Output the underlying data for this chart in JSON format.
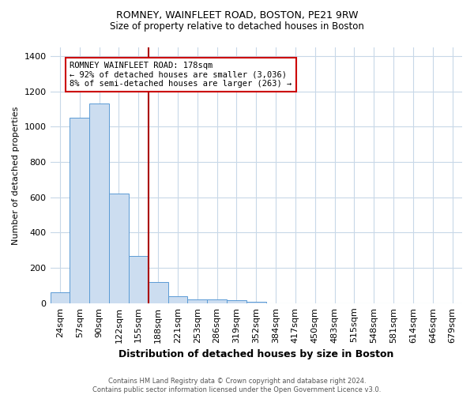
{
  "title": "ROMNEY, WAINFLEET ROAD, BOSTON, PE21 9RW",
  "subtitle": "Size of property relative to detached houses in Boston",
  "xlabel": "Distribution of detached houses by size in Boston",
  "ylabel": "Number of detached properties",
  "footnote": "Contains HM Land Registry data © Crown copyright and database right 2024.\nContains public sector information licensed under the Open Government Licence v3.0.",
  "bar_labels": [
    "24sqm",
    "57sqm",
    "90sqm",
    "122sqm",
    "155sqm",
    "188sqm",
    "221sqm",
    "253sqm",
    "286sqm",
    "319sqm",
    "352sqm",
    "384sqm",
    "417sqm",
    "450sqm",
    "483sqm",
    "515sqm",
    "548sqm",
    "581sqm",
    "614sqm",
    "646sqm",
    "679sqm"
  ],
  "bar_values": [
    60,
    1050,
    1130,
    620,
    270,
    120,
    40,
    20,
    20,
    15,
    10,
    0,
    0,
    0,
    0,
    0,
    0,
    0,
    0,
    0,
    0
  ],
  "bar_color": "#ccddf0",
  "bar_edge_color": "#5b9bd5",
  "vline_x_index": 5,
  "vline_color": "#aa0000",
  "annotation_text": "ROMNEY WAINFLEET ROAD: 178sqm\n← 92% of detached houses are smaller (3,036)\n8% of semi-detached houses are larger (263) →",
  "annotation_box_color": "#cc0000",
  "ylim": [
    0,
    1450
  ],
  "yticks": [
    0,
    200,
    400,
    600,
    800,
    1000,
    1200,
    1400
  ],
  "background_color": "#ffffff",
  "grid_color": "#c8d8e8",
  "title_fontsize": 9,
  "subtitle_fontsize": 8.5,
  "ylabel_fontsize": 8,
  "xlabel_fontsize": 9,
  "tick_fontsize": 8,
  "ann_fontsize": 7.5
}
